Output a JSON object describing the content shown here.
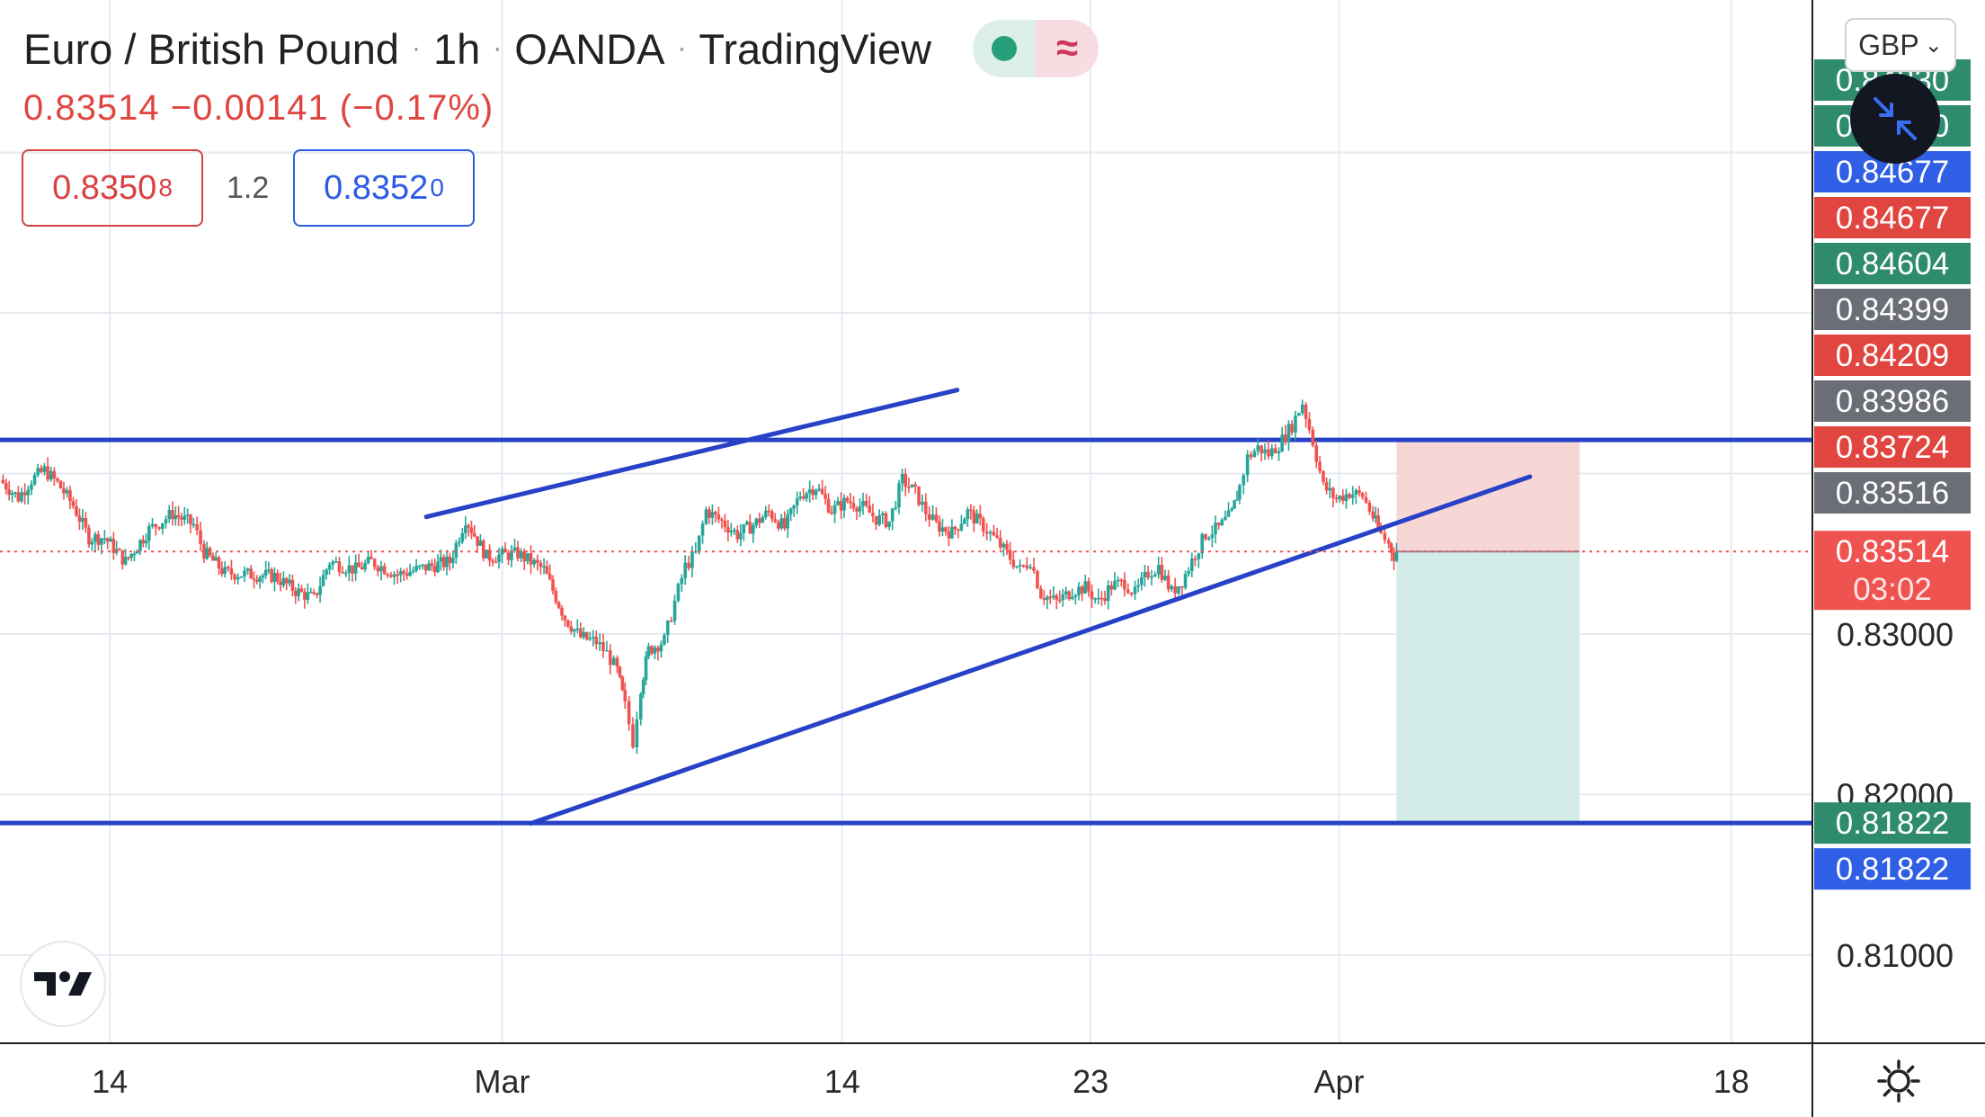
{
  "header": {
    "symbol": "Euro / British Pound",
    "interval": "1h",
    "broker": "OANDA",
    "platform": "TradingView",
    "sep": "·",
    "status_icon": "market-open-dot",
    "wave_glyph": "≈"
  },
  "quote": {
    "last": "0.83514",
    "change": "−0.00141",
    "change_pct": "(−0.17%)",
    "bid_main": "0.8350",
    "bid_frac": "8",
    "spread": "1.2",
    "ask_main": "0.8352",
    "ask_frac": "0"
  },
  "controls": {
    "currency": "GBP",
    "currency_caret": "⌄",
    "collapse_icon": "collapse-arrows-icon",
    "logo": "tradingview-logo",
    "settings_icon": "gear-icon"
  },
  "colors": {
    "up": "#26a69a",
    "down": "#ef5350",
    "line_blue": "#2741c7",
    "stop_zone": "#f7d7d6",
    "target_zone": "#d3ece8"
  },
  "chart_data": {
    "type": "candlestick",
    "title": "Euro / British Pound · 1h · OANDA",
    "x_axis": {
      "ticks": [
        {
          "label": "14",
          "day": 14
        },
        {
          "label": "Mar",
          "day": 29
        },
        {
          "label": "14",
          "day": 42
        },
        {
          "label": "23",
          "day": 51.5
        },
        {
          "label": "Apr",
          "day": 61
        },
        {
          "label": "18",
          "day": 76
        }
      ],
      "range_days": [
        9.8,
        79.1
      ]
    },
    "y_axis": {
      "ticks": [
        "0.83000",
        "0.82000",
        "0.81000"
      ],
      "tick_values": [
        0.83,
        0.82,
        0.81
      ],
      "range": [
        0.8045,
        0.8695
      ]
    },
    "grid": true,
    "price_tags": [
      {
        "label": "0.84830",
        "value": 0.8483,
        "color": "#2e8b6e"
      },
      {
        "label": "0.84750",
        "value": 0.8475,
        "color": "#2e8b6e"
      },
      {
        "label": "0.84677",
        "value": 0.84677,
        "color": "#2f5fe4"
      },
      {
        "label": "0.84677",
        "value": 0.84677,
        "color": "#e0453f"
      },
      {
        "label": "0.84604",
        "value": 0.84604,
        "color": "#2e8b6e"
      },
      {
        "label": "0.84399",
        "value": 0.84399,
        "color": "#6b6e76"
      },
      {
        "label": "0.84209",
        "value": 0.84209,
        "color": "#e0453f"
      },
      {
        "label": "0.83986",
        "value": 0.83986,
        "color": "#6b6e76"
      },
      {
        "label": "0.83724",
        "value": 0.83724,
        "color": "#e0453f"
      },
      {
        "label": "0.83516",
        "value": 0.83516,
        "color": "#6b6e76"
      },
      {
        "label": "0.83514",
        "value": 0.83514,
        "color": "#ef5350",
        "countdown": "03:02"
      },
      {
        "label": "0.81822",
        "value": 0.81822,
        "color": "#2e8b6e"
      },
      {
        "label": "0.81822",
        "value": 0.81822,
        "color": "#2f5fe4"
      }
    ],
    "horizontal_lines": [
      {
        "value": 0.84209,
        "name": "resistance"
      },
      {
        "value": 0.81822,
        "name": "support"
      }
    ],
    "trend_lines": [
      {
        "name": "channel-top",
        "from": {
          "day": 26.1,
          "price": 0.8373
        },
        "to": {
          "day": 46.4,
          "price": 0.8452
        }
      },
      {
        "name": "channel-bottom",
        "from": {
          "day": 30.1,
          "price": 0.8182
        },
        "to": {
          "day": 68.3,
          "price": 0.8398
        }
      }
    ],
    "position": {
      "type": "short",
      "entry": 0.83514,
      "stop": 0.84209,
      "target": 0.81822,
      "start_day": 63.2,
      "end_day": 70.2
    },
    "last_price": 0.83514,
    "series": [
      {
        "name": "EUR/GBP",
        "points": [
          [
            9.8,
            0.8396
          ],
          [
            10.5,
            0.8385
          ],
          [
            11.0,
            0.8396
          ],
          [
            11.5,
            0.8402
          ],
          [
            12.0,
            0.8394
          ],
          [
            12.6,
            0.838
          ],
          [
            13.2,
            0.836
          ],
          [
            13.8,
            0.836
          ],
          [
            14.6,
            0.8345
          ],
          [
            15.5,
            0.8365
          ],
          [
            16.4,
            0.8375
          ],
          [
            17.2,
            0.8368
          ],
          [
            17.6,
            0.8351
          ],
          [
            18.4,
            0.8338
          ],
          [
            19.4,
            0.8337
          ],
          [
            20.3,
            0.8336
          ],
          [
            21.1,
            0.8327
          ],
          [
            21.8,
            0.8322
          ],
          [
            22.4,
            0.8345
          ],
          [
            23.4,
            0.834
          ],
          [
            24.0,
            0.8345
          ],
          [
            25.0,
            0.8337
          ],
          [
            26.2,
            0.8342
          ],
          [
            27.0,
            0.8345
          ],
          [
            27.6,
            0.8372
          ],
          [
            28.4,
            0.8348
          ],
          [
            29.6,
            0.835
          ],
          [
            30.6,
            0.834
          ],
          [
            31.4,
            0.831
          ],
          [
            32.0,
            0.8298
          ],
          [
            32.6,
            0.8295
          ],
          [
            33.0,
            0.8288
          ],
          [
            33.4,
            0.8277
          ],
          [
            33.7,
            0.8255
          ],
          [
            34.0,
            0.8233
          ],
          [
            34.3,
            0.8267
          ],
          [
            34.6,
            0.829
          ],
          [
            35.2,
            0.8296
          ],
          [
            35.6,
            0.832
          ],
          [
            36.0,
            0.8342
          ],
          [
            36.4,
            0.835
          ],
          [
            36.8,
            0.8377
          ],
          [
            37.4,
            0.837
          ],
          [
            38.0,
            0.8362
          ],
          [
            38.6,
            0.8368
          ],
          [
            39.2,
            0.8376
          ],
          [
            39.8,
            0.8366
          ],
          [
            40.4,
            0.8387
          ],
          [
            41.0,
            0.8392
          ],
          [
            41.6,
            0.8377
          ],
          [
            42.2,
            0.8383
          ],
          [
            42.8,
            0.8379
          ],
          [
            43.3,
            0.8372
          ],
          [
            43.8,
            0.837
          ],
          [
            44.3,
            0.8396
          ],
          [
            44.8,
            0.8388
          ],
          [
            45.2,
            0.8376
          ],
          [
            45.6,
            0.8368
          ],
          [
            46.2,
            0.8363
          ],
          [
            46.8,
            0.8376
          ],
          [
            47.4,
            0.8367
          ],
          [
            47.8,
            0.836
          ],
          [
            48.3,
            0.835
          ],
          [
            48.8,
            0.834
          ],
          [
            49.2,
            0.8346
          ],
          [
            49.6,
            0.8325
          ],
          [
            50.2,
            0.832
          ],
          [
            50.8,
            0.8327
          ],
          [
            51.3,
            0.8329
          ],
          [
            51.8,
            0.832
          ],
          [
            52.3,
            0.833
          ],
          [
            52.8,
            0.8332
          ],
          [
            53.2,
            0.8325
          ],
          [
            53.7,
            0.8338
          ],
          [
            54.1,
            0.8342
          ],
          [
            54.6,
            0.8326
          ],
          [
            55.0,
            0.8333
          ],
          [
            55.5,
            0.835
          ],
          [
            55.9,
            0.8362
          ],
          [
            56.4,
            0.8366
          ],
          [
            56.9,
            0.8375
          ],
          [
            57.2,
            0.8392
          ],
          [
            57.5,
            0.841
          ],
          [
            57.9,
            0.8416
          ],
          [
            58.3,
            0.8412
          ],
          [
            58.7,
            0.8418
          ],
          [
            59.2,
            0.843
          ],
          [
            59.6,
            0.8444
          ],
          [
            60.0,
            0.842
          ],
          [
            60.4,
            0.8392
          ],
          [
            60.9,
            0.8384
          ],
          [
            61.4,
            0.8388
          ],
          [
            61.9,
            0.8386
          ],
          [
            62.3,
            0.8373
          ],
          [
            62.6,
            0.8362
          ],
          [
            62.9,
            0.8356
          ],
          [
            63.1,
            0.8349
          ],
          [
            63.2,
            0.83514
          ]
        ]
      }
    ]
  }
}
